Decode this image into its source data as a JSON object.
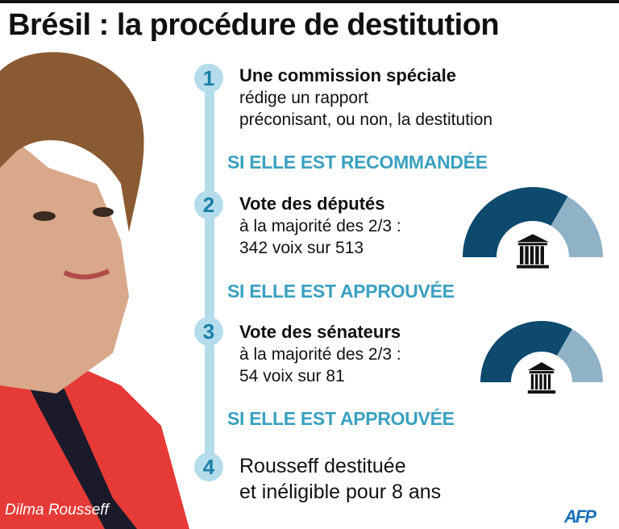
{
  "title": "Brésil : la procédure de destitution",
  "photo_caption": "Dilma Rousseff",
  "steps": [
    {
      "number": "1",
      "heading": "Une commission spéciale",
      "lines": [
        "rédige un rapport",
        "préconisant, ou non, la destitution"
      ]
    },
    {
      "number": "2",
      "heading": "Vote des députés",
      "lines": [
        "à la majorité des 2/3 :",
        "342 voix sur 513"
      ],
      "votes_required": 342,
      "votes_total": 513,
      "icon": "parliament-building-icon"
    },
    {
      "number": "3",
      "heading": "Vote des sénateurs",
      "lines": [
        "à la majorité des 2/3 :",
        "54 voix sur 81"
      ],
      "votes_required": 54,
      "votes_total": 81,
      "icon": "parliament-building-icon"
    },
    {
      "number": "4",
      "lines": [
        "Rousseff destituée",
        "et inéligible pour 8 ans"
      ]
    }
  ],
  "conditions": [
    "SI ELLE EST RECOMMANDÉE",
    "SI ELLE EST APPROUVÉE",
    "SI ELLE EST APPROUVÉE"
  ],
  "logo": "AFP",
  "colors": {
    "majority": "#0d4a6e",
    "remainder": "#8fb2c6",
    "timeline": "#b5dceb",
    "condition": "#3aa0c0"
  }
}
